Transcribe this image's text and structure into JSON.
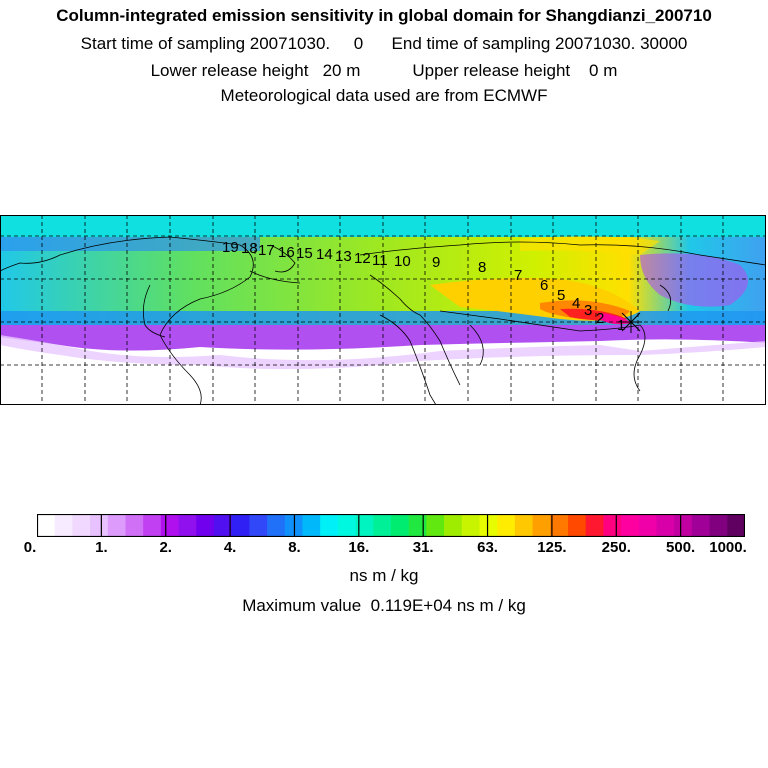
{
  "header": {
    "title": "Column-integrated emission sensitivity in global domain for Shangdianzi_200710",
    "line1": "Start time of sampling 20071030.     0      End time of sampling 20071030. 30000",
    "line2": "Lower release height   20 m           Upper release height    0 m",
    "line3": "Meteorological data used are from ECMWF"
  },
  "map": {
    "trajectory_labels": [
      "19",
      "18",
      "17",
      "16",
      "15",
      "14",
      "13",
      "12",
      "11",
      "10",
      "9",
      "8",
      "7",
      "6",
      "5",
      "4",
      "3",
      "2",
      "1"
    ]
  },
  "colorbar": {
    "colors": [
      "#ffffff",
      "#f7ecff",
      "#f0d8ff",
      "#e8c2ff",
      "#dd9cfb",
      "#d070f7",
      "#c040f2",
      "#b010ee",
      "#9010ee",
      "#7000ee",
      "#5010f0",
      "#3020f4",
      "#3048f8",
      "#2070f8",
      "#1090fa",
      "#00b8fa",
      "#00f0f8",
      "#00f8e0",
      "#00f4c0",
      "#00f098",
      "#00ec70",
      "#20e840",
      "#60e810",
      "#a0ec00",
      "#c8f400",
      "#e8fc00",
      "#ffec00",
      "#ffc800",
      "#ffa000",
      "#ff7800",
      "#ff4800",
      "#ff1830",
      "#ff0080",
      "#ff00a0",
      "#f000a8",
      "#d800a8",
      "#c000a0",
      "#a00098",
      "#800080",
      "#600060"
    ],
    "tick_labels": [
      "0.",
      "1.",
      "2.",
      "4.",
      "8.",
      "16.",
      "31.",
      "63.",
      "125.",
      "250.",
      "500.",
      "1000."
    ],
    "unit": "ns m / kg",
    "max_value_text": "Maximum value  0.119E+04 ns m / kg"
  }
}
